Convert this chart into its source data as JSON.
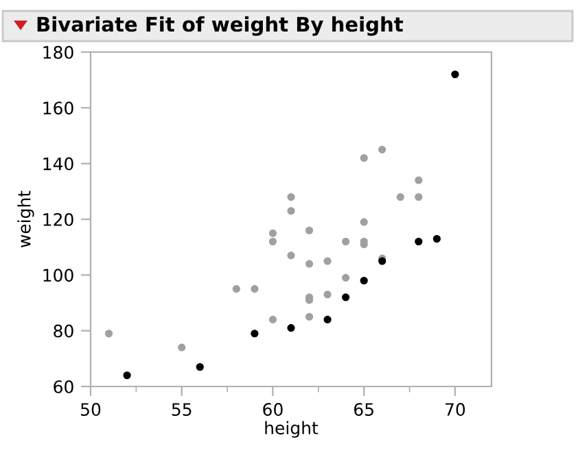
{
  "chart_data": {
    "type": "scatter",
    "title": "Bivariate Fit of weight By height",
    "xlabel": "height",
    "ylabel": "weight",
    "series": [
      {
        "color": "#a0a0a0",
        "x": [
          51,
          55,
          58,
          59,
          60,
          60,
          60,
          61,
          61,
          61,
          62,
          62,
          62,
          62,
          62,
          63,
          63,
          64,
          64,
          65,
          65,
          65,
          65,
          66,
          66,
          67,
          68,
          68
        ],
        "values": [
          79,
          74,
          95,
          95,
          84,
          112,
          115,
          128,
          123,
          107,
          116,
          104,
          92,
          91,
          85,
          105,
          93,
          112,
          99,
          142,
          119,
          112,
          111,
          145,
          106,
          128,
          134,
          128
        ]
      },
      {
        "color": "#000000",
        "x": [
          52,
          56,
          59,
          61,
          63,
          64,
          65,
          66,
          68,
          69,
          70
        ],
        "values": [
          64,
          67,
          79,
          81,
          84,
          92,
          98,
          105,
          112,
          113,
          172
        ]
      }
    ],
    "xlim": [
      50,
      72
    ],
    "ylim": [
      60,
      180
    ],
    "xticks": [
      50,
      55,
      60,
      65,
      70
    ],
    "yticks": [
      60,
      80,
      100,
      120,
      140,
      160,
      180
    ],
    "grid": false,
    "marker": "circle"
  }
}
